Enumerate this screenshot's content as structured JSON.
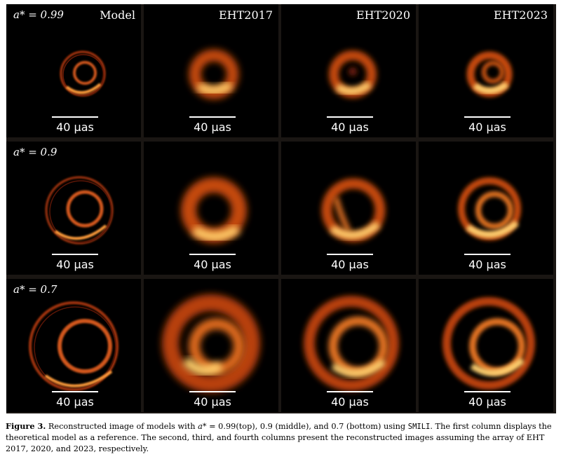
{
  "colors": {
    "frame": "#1a1613",
    "panel": "#000000",
    "ring_mid": "#e06a1a",
    "ring_hot": "#ffd070"
  },
  "columns": [
    {
      "title": "Model"
    },
    {
      "title": "EHT2017"
    },
    {
      "title": "EHT2020"
    },
    {
      "title": "EHT2023"
    }
  ],
  "rows": [
    {
      "spin_label": "a* = 0.99"
    },
    {
      "spin_label": "a* = 0.9"
    },
    {
      "spin_label": "a* = 0.7"
    }
  ],
  "scale_bar_label": "40 μas",
  "caption": {
    "figure_label": "Figure 3.",
    "part1": " Reconstructed image of models with ",
    "math_spin": "a* = ",
    "part2": "0.99(top), 0.9 (middle), and 0.7 (bottom) using ",
    "method": "SMILI",
    "part3": ". The first column displays the theoretical model as a reference. The second, third, and fourth columns present the reconstructed images assuming the array of EHT 2017, 2020, and 2023, respectively."
  }
}
